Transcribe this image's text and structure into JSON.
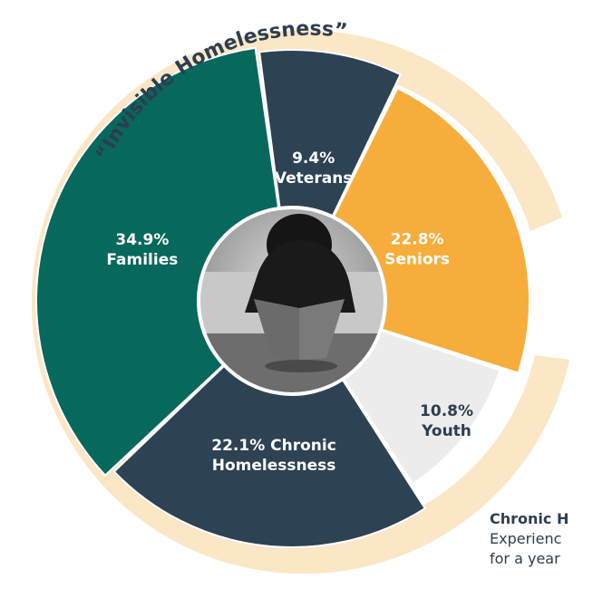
{
  "chart_data": {
    "type": "pie",
    "title": "“Invisible Homelessness”",
    "slices": [
      {
        "label_pct": "22.8%",
        "label_name": "Seniors",
        "value": 22.8,
        "color": "#f7ad3b"
      },
      {
        "label_pct": "10.8%",
        "label_name": "Youth",
        "value": 10.8,
        "color": "#ececec"
      },
      {
        "label_pct": "22.1% Chronic",
        "label_name": "Homelessness",
        "value": 22.1,
        "color": "#2d4253"
      },
      {
        "label_pct": "34.9%",
        "label_name": "Families",
        "value": 34.9,
        "color": "#07685c"
      },
      {
        "label_pct": "9.4%",
        "label_name": "Veterans",
        "value": 9.4,
        "color": "#2d4253"
      }
    ],
    "outer_ring_color": "#fbe6c6",
    "center_image": "person-sitting-head-down-photo"
  },
  "note": {
    "title": "Chronic H",
    "line1": "Experienc",
    "line2": "for a year"
  }
}
